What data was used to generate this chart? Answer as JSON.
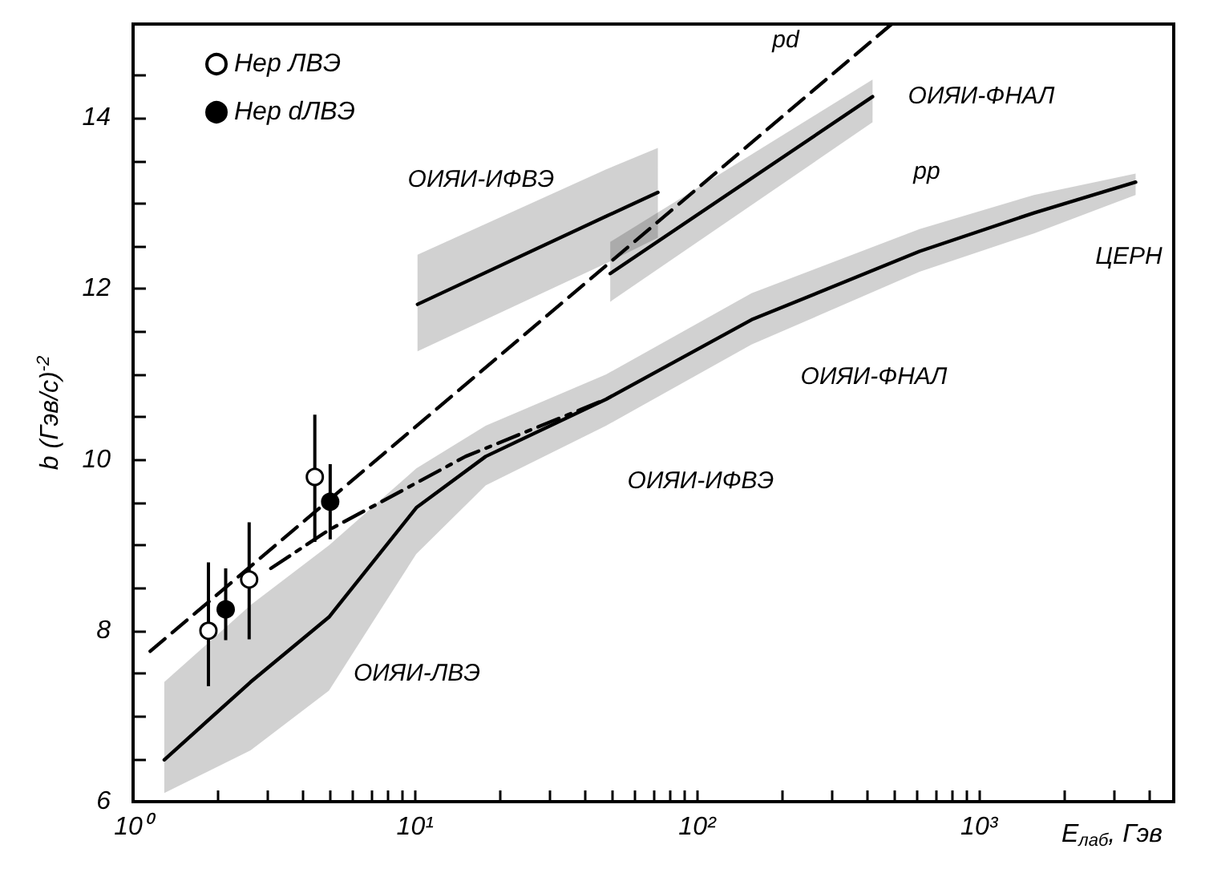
{
  "chart_data": {
    "type": "line",
    "xlabel": "E$_{лаб}$, Гэв",
    "ylabel": "b (Гэв/c)$^{-2}$",
    "log": "x",
    "grid": false,
    "legend": "top left",
    "xlim": [
      1,
      4900
    ],
    "ylim": [
      6,
      15.1
    ],
    "xticks": [
      {
        "value": 1,
        "label": "10⁰"
      },
      {
        "value": 2,
        "label": null
      },
      {
        "value": 3,
        "label": null
      },
      {
        "value": 4,
        "label": null
      },
      {
        "value": 5,
        "label": null
      },
      {
        "value": 6,
        "label": null
      },
      {
        "value": 7,
        "label": null
      },
      {
        "value": 8,
        "label": null
      },
      {
        "value": 9,
        "label": null
      },
      {
        "value": 10,
        "label": "10¹"
      },
      {
        "value": 20,
        "label": null
      },
      {
        "value": 30,
        "label": null
      },
      {
        "value": 40,
        "label": null
      },
      {
        "value": 50,
        "label": null
      },
      {
        "value": 60,
        "label": null
      },
      {
        "value": 70,
        "label": null
      },
      {
        "value": 80,
        "label": null
      },
      {
        "value": 90,
        "label": null
      },
      {
        "value": 100,
        "label": "10²"
      },
      {
        "value": 200,
        "label": null
      },
      {
        "value": 300,
        "label": null
      },
      {
        "value": 400,
        "label": null
      },
      {
        "value": 500,
        "label": null
      },
      {
        "value": 600,
        "label": null
      },
      {
        "value": 700,
        "label": null
      },
      {
        "value": 800,
        "label": null
      },
      {
        "value": 900,
        "label": null
      },
      {
        "value": 1000,
        "label": "10³"
      },
      {
        "value": 2000,
        "label": null
      },
      {
        "value": 3000,
        "label": null
      },
      {
        "value": 4000,
        "label": null
      }
    ],
    "yticks": [
      6,
      {
        "value": 6.5,
        "label": null
      },
      {
        "value": 7,
        "label": null
      },
      {
        "value": 7.5,
        "label": null
      },
      8,
      {
        "value": 8.5,
        "label": null
      },
      {
        "value": 9,
        "label": null
      },
      {
        "value": 9.5,
        "label": null
      },
      10,
      {
        "value": 10.5,
        "label": null
      },
      {
        "value": 11,
        "label": null
      },
      {
        "value": 11.5,
        "label": null
      },
      12,
      {
        "value": 12.5,
        "label": null
      },
      {
        "value": 13,
        "label": null
      },
      {
        "value": 13.5,
        "label": null
      },
      14,
      {
        "value": 14.5,
        "label": null
      }
    ],
    "series": [
      {
        "color": "#000000",
        "line_style": "dashed",
        "marker": "none",
        "x": [
          1.15,
          490
        ],
        "values": [
          7.76,
          15.1
        ]
      },
      {
        "color": "#000000",
        "line_style": "solid",
        "marker": "none",
        "x": [
          1.29,
          2.61,
          4.95,
          10.1,
          17.8,
          47.6,
          156,
          615,
          1565,
          3590
        ],
        "values": [
          6.49,
          7.4,
          8.16,
          9.44,
          10.04,
          10.71,
          11.64,
          12.44,
          12.89,
          13.25
        ],
        "lower": [
          6.1,
          6.6,
          7.3,
          8.9,
          9.7,
          10.4,
          11.35,
          12.2,
          12.65,
          13.1
        ],
        "upper": [
          7.4,
          8.3,
          9.0,
          9.9,
          10.4,
          11.0,
          11.95,
          12.7,
          13.1,
          13.35
        ]
      },
      {
        "color": "#000000",
        "line_style": "dashdot",
        "marker": "none",
        "x": [
          3.08,
          4.95,
          15.1,
          47.6
        ],
        "values": [
          8.73,
          9.18,
          10.04,
          10.71
        ]
      },
      {
        "color": "#000000",
        "line_style": "solid",
        "marker": "none",
        "x": [
          10.2,
          47.6,
          72.6
        ],
        "values": [
          11.82,
          12.85,
          13.13
        ],
        "lower": [
          11.27,
          12.3,
          12.6
        ],
        "upper": [
          12.4,
          13.4,
          13.65
        ]
      },
      {
        "color": "#000000",
        "line_style": "solid",
        "marker": "none",
        "x": [
          49.2,
          419
        ],
        "values": [
          12.18,
          14.25
        ],
        "lower": [
          11.85,
          13.95
        ],
        "upper": [
          12.55,
          14.45
        ]
      },
      {
        "type": "scatter",
        "name": "Hep ЛВЭ",
        "color": "#ffffff",
        "marker": "circle",
        "x": [
          1.85,
          2.58,
          4.41
        ],
        "values": [
          8.0,
          8.6,
          9.8
        ],
        "errors": [
          [
            7.35,
            8.8
          ],
          [
            7.9,
            9.27
          ],
          [
            9.04,
            10.53
          ]
        ]
      },
      {
        "type": "scatter",
        "name": "Hep dЛВЭ",
        "color": "#000000",
        "marker": "circle",
        "x": [
          2.13,
          5.0
        ],
        "values": [
          8.25,
          9.51
        ],
        "errors": [
          [
            7.89,
            8.73
          ],
          [
            9.07,
            9.95
          ]
        ]
      }
    ],
    "annotations": [
      "pd",
      "pp",
      "ОИЯИ-ИФВЭ",
      "ОИЯИ-ФНАЛ",
      "ЦЕРН",
      "ОИЯИ-ФНАЛ",
      "ОИЯИ-ИФВЭ",
      "ОИЯИ-ЛВЭ"
    ]
  }
}
